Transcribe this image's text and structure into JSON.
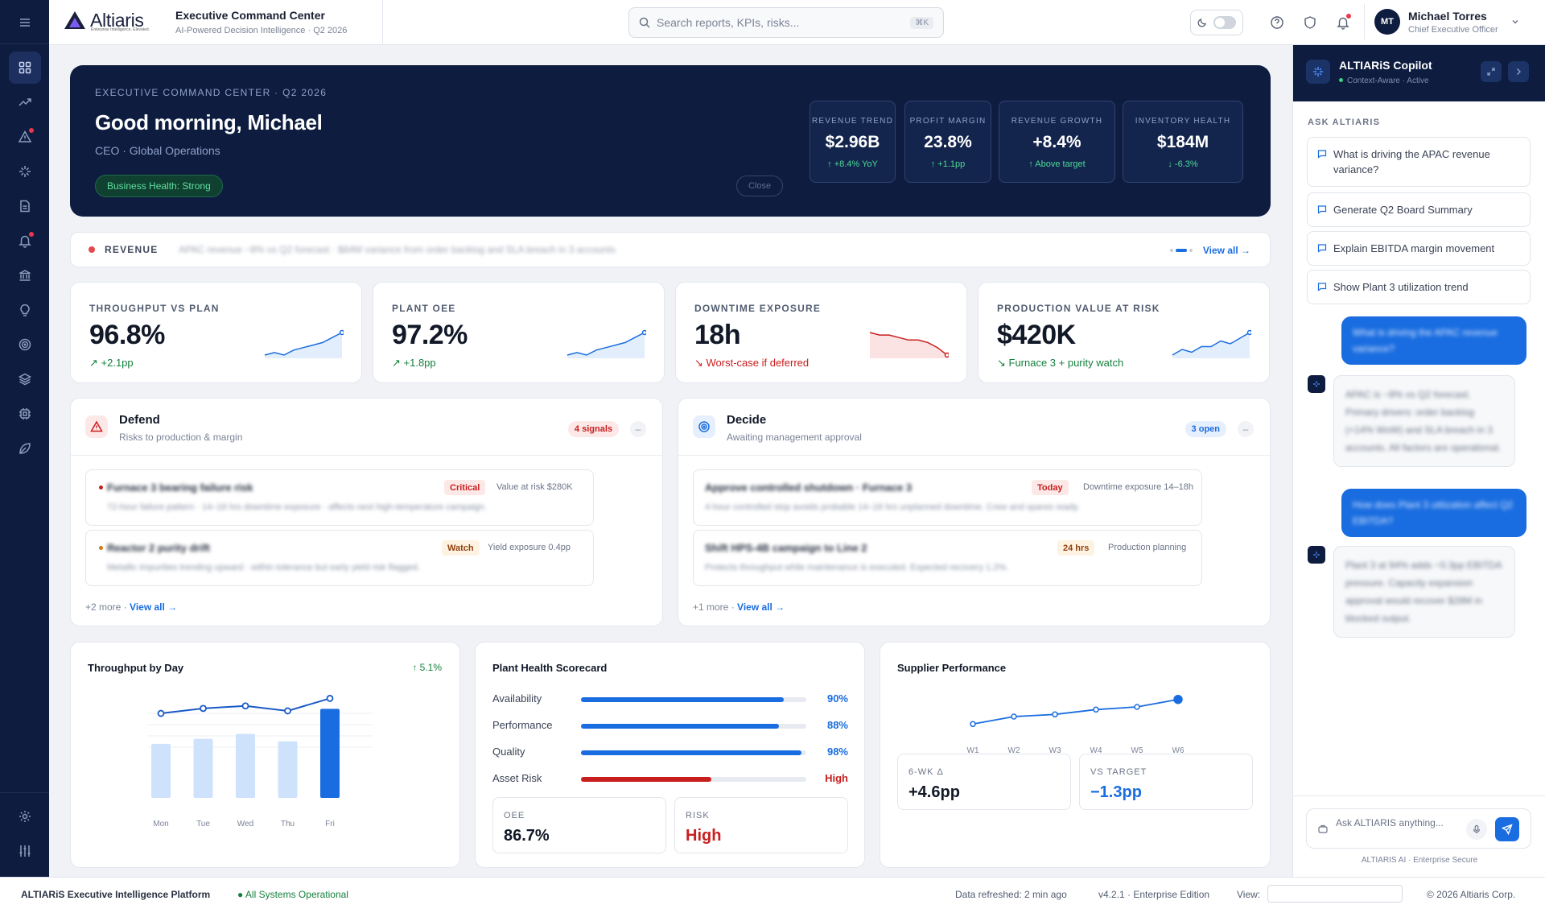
{
  "app": {
    "brand": "Altiaris",
    "brand_tagline": "Enterprise Intelligence. Elevated.",
    "title": "Executive Command Center",
    "subtitle": "AI-Powered Decision Intelligence · Q2 2026"
  },
  "search": {
    "placeholder": "Search reports, KPIs, risks...",
    "shortcut": "⌘K"
  },
  "user": {
    "initials": "MT",
    "name": "Michael Torres",
    "role": "Chief Executive Officer"
  },
  "sidebar": {
    "items": [
      "dashboard-icon",
      "trend-icon",
      "alert-icon",
      "sparkle-icon",
      "document-icon",
      "bell-icon",
      "bank-icon",
      "lightbulb-icon",
      "target-icon",
      "layers-icon",
      "chip-icon",
      "leaf-icon"
    ],
    "bottom": [
      "settings-icon",
      "sliders-icon"
    ]
  },
  "hero": {
    "eyebrow": "EXECUTIVE COMMAND CENTER · Q2 2026",
    "greeting": "Good morning, Michael",
    "role": "CEO · Global Operations",
    "health": "Business Health: Strong",
    "close": "Close",
    "kpis": [
      {
        "label": "REVENUE TREND",
        "value": "$2.96B",
        "delta": "↑ +8.4% YoY"
      },
      {
        "label": "PROFIT MARGIN",
        "value": "23.8%",
        "delta": "↑ +1.1pp"
      },
      {
        "label": "REVENUE GROWTH",
        "value": "+8.4%",
        "delta": "↑ Above target"
      },
      {
        "label": "INVENTORY HEALTH",
        "value": "$184M",
        "delta": "↓ -6.3%"
      }
    ]
  },
  "ticker": {
    "label": "REVENUE",
    "message": "APAC revenue −8% vs Q2 forecast · $84M variance from order backlog and SLA breach in 3 accounts",
    "view_all": "View all →"
  },
  "stats": [
    {
      "label": "THROUGHPUT VS PLAN",
      "value": "96.8%",
      "delta": "↗ +2.1pp",
      "trend": "up",
      "spark": [
        5,
        6,
        5,
        7,
        8,
        9,
        10,
        12,
        14
      ]
    },
    {
      "label": "PLANT OEE",
      "value": "97.2%",
      "delta": "↗ +1.8pp",
      "trend": "up",
      "spark": [
        5,
        6,
        5,
        7,
        8,
        9,
        10,
        12,
        14
      ]
    },
    {
      "label": "DOWNTIME EXPOSURE",
      "value": "18h",
      "delta": "↘ Worst-case if deferred",
      "trend": "down",
      "spark": [
        14,
        13,
        13,
        12,
        11,
        11,
        10,
        8,
        5
      ]
    },
    {
      "label": "PRODUCTION VALUE AT RISK",
      "value": "$420K",
      "delta": "↘ Furnace 3 + purity watch",
      "trend": "up",
      "spark": [
        5,
        7,
        6,
        8,
        8,
        10,
        9,
        11,
        13
      ]
    }
  ],
  "defend": {
    "title": "Defend",
    "subtitle": "Risks to production & margin",
    "badge": "4 signals",
    "items": [
      {
        "title": "Furnace 3 bearing failure risk",
        "tag": "Critical",
        "meta": "Value at risk $280K",
        "desc": "72-hour failure pattern · 14–18 hrs downtime exposure · affects next high-temperature campaign."
      },
      {
        "title": "Reactor 2 purity drift",
        "tag": "Watch",
        "meta": "Yield exposure 0.4pp",
        "desc": "Metallic impurities trending upward · within tolerance but early yield risk flagged."
      }
    ],
    "more": "+2 more · ",
    "view_all": "View all →"
  },
  "decide": {
    "title": "Decide",
    "subtitle": "Awaiting management approval",
    "badge": "3 open",
    "items": [
      {
        "title": "Approve controlled shutdown · Furnace 3",
        "tag": "Today",
        "meta": "Downtime exposure 14–18h",
        "desc": "4-hour controlled stop avoids probable 14–18 hrs unplanned downtime. Crew and spares ready."
      },
      {
        "title": "Shift HPS-4B campaign to Line 2",
        "tag": "24 hrs",
        "meta": "Production planning",
        "desc": "Protects throughput while maintenance is executed. Expected recovery 1.2%."
      }
    ],
    "more": "+1 more · ",
    "view_all": "View all →"
  },
  "throughput": {
    "title": "Throughput by Day",
    "delta": "↑ 5.1%"
  },
  "scorecard": {
    "title": "Plant Health Scorecard",
    "rows": [
      {
        "name": "Availability",
        "value": "90%",
        "level": 0.9,
        "color": "#1a6de0"
      },
      {
        "name": "Performance",
        "value": "88%",
        "level": 0.88,
        "color": "#1a6de0"
      },
      {
        "name": "Quality",
        "value": "98%",
        "level": 0.98,
        "color": "#1a6de0"
      },
      {
        "name": "Asset Risk",
        "value": "High",
        "level": 0.58,
        "color": "#c81e1e"
      }
    ],
    "tiles": [
      {
        "label": "OEE",
        "value": "86.7%"
      },
      {
        "label": "RISK",
        "value": "High"
      }
    ]
  },
  "supplier": {
    "title": "Supplier Performance",
    "tiles": [
      {
        "label": "6-WK Δ",
        "value": "+4.6pp"
      },
      {
        "label": "VS TARGET",
        "value": "−1.3pp"
      }
    ]
  },
  "chart_data": [
    {
      "type": "bar",
      "title": "Throughput by Day",
      "categories": [
        "Mon",
        "Tue",
        "Wed",
        "Thu",
        "Fri"
      ],
      "series": [
        {
          "values": [
            88,
            90,
            91,
            89,
            94
          ]
        },
        {
          "values": [
            80,
            82,
            84,
            81,
            94
          ]
        }
      ]
    },
    {
      "type": "line",
      "title": "Supplier Performance",
      "categories": [
        "W1",
        "W2",
        "W3",
        "W4",
        "W5",
        "W6"
      ],
      "series": [
        {
          "values": [
            85.0,
            86.4,
            86.8,
            87.7,
            88.2,
            89.6
          ]
        }
      ]
    }
  ],
  "copilot": {
    "title": "ALTIARiS Copilot",
    "status": "Context-Aware · Active",
    "ask_label": "ASK ALTIARIS",
    "suggestions": [
      "What is driving the APAC revenue variance?",
      "Generate Q2 Board Summary",
      "Explain EBITDA margin movement",
      "Show Plant 3 utilization trend"
    ],
    "messages": [
      {
        "role": "user",
        "text": "What is driving the APAC revenue variance?"
      },
      {
        "role": "ai",
        "text": "APAC is −8% vs Q2 forecast. Primary drivers: order backlog (+14% WoW) and SLA breach in 3 accounts. All factors are operational."
      },
      {
        "role": "user",
        "text": "How does Plant 3 utilization affect Q2 EBITDA?"
      },
      {
        "role": "ai",
        "text": "Plant 3 at 94% adds ~0.3pp EBITDA pressure. Capacity expansion approval would recover $28M in blocked output."
      }
    ],
    "input_placeholder": "Ask ALTIARIS anything...",
    "footer": "ALTIARIS AI · Enterprise Secure"
  },
  "footer": {
    "platform": "ALTIARiS Executive Intelligence Platform",
    "status": "● All Systems Operational",
    "refreshed": "Data refreshed: 2 min ago",
    "version": "v4.2.1 · Enterprise Edition",
    "view_label": "View:",
    "copyright": "© 2026 Altiaris Corp."
  }
}
